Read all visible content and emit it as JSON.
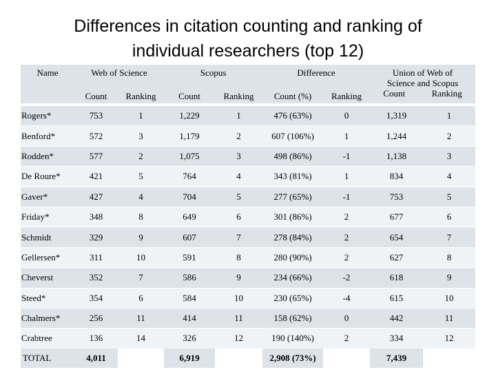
{
  "title": {
    "line1": "Differences in citation counting and ranking of",
    "line2": "individual researchers (top 12)"
  },
  "header": {
    "name": "Name",
    "wos": "Web of Science",
    "scopus": "Scopus",
    "difference": "Difference",
    "union_line1": "Union of Web of",
    "union_line2": "Science and Scopus",
    "count": "Count",
    "ranking": "Ranking",
    "count_pct": "Count (%)"
  },
  "rows": [
    {
      "name": "Rogers*",
      "wos_count": "753",
      "wos_rank": "1",
      "scopus_count": "1,229",
      "scopus_rank": "1",
      "diff_count": "476 (63%)",
      "diff_rank": "0",
      "union_count": "1,319",
      "union_rank": "1"
    },
    {
      "name": "Benford*",
      "wos_count": "572",
      "wos_rank": "3",
      "scopus_count": "1,179",
      "scopus_rank": "2",
      "diff_count": "607 (106%)",
      "diff_rank": "1",
      "union_count": "1,244",
      "union_rank": "2"
    },
    {
      "name": "Rodden*",
      "wos_count": "577",
      "wos_rank": "2",
      "scopus_count": "1,075",
      "scopus_rank": "3",
      "diff_count": "498 (86%)",
      "diff_rank": "-1",
      "union_count": "1,138",
      "union_rank": "3"
    },
    {
      "name": "De Roure*",
      "wos_count": "421",
      "wos_rank": "5",
      "scopus_count": "764",
      "scopus_rank": "4",
      "diff_count": "343 (81%)",
      "diff_rank": "1",
      "union_count": "834",
      "union_rank": "4"
    },
    {
      "name": "Gaver*",
      "wos_count": "427",
      "wos_rank": "4",
      "scopus_count": "704",
      "scopus_rank": "5",
      "diff_count": "277 (65%)",
      "diff_rank": "-1",
      "union_count": "753",
      "union_rank": "5"
    },
    {
      "name": "Friday*",
      "wos_count": "348",
      "wos_rank": "8",
      "scopus_count": "649",
      "scopus_rank": "6",
      "diff_count": "301 (86%)",
      "diff_rank": "2",
      "union_count": "677",
      "union_rank": "6"
    },
    {
      "name": "Schmidt",
      "wos_count": "329",
      "wos_rank": "9",
      "scopus_count": "607",
      "scopus_rank": "7",
      "diff_count": "278 (84%)",
      "diff_rank": "2",
      "union_count": "654",
      "union_rank": "7"
    },
    {
      "name": "Gellersen*",
      "wos_count": "311",
      "wos_rank": "10",
      "scopus_count": "591",
      "scopus_rank": "8",
      "diff_count": "280 (90%)",
      "diff_rank": "2",
      "union_count": "627",
      "union_rank": "8"
    },
    {
      "name": "Cheverst",
      "wos_count": "352",
      "wos_rank": "7",
      "scopus_count": "586",
      "scopus_rank": "9",
      "diff_count": "234 (66%)",
      "diff_rank": "-2",
      "union_count": "618",
      "union_rank": "9"
    },
    {
      "name": "Steed*",
      "wos_count": "354",
      "wos_rank": "6",
      "scopus_count": "584",
      "scopus_rank": "10",
      "diff_count": "230 (65%)",
      "diff_rank": "-4",
      "union_count": "615",
      "union_rank": "10"
    },
    {
      "name": "Chalmers*",
      "wos_count": "256",
      "wos_rank": "11",
      "scopus_count": "414",
      "scopus_rank": "11",
      "diff_count": "158 (62%)",
      "diff_rank": "0",
      "union_count": "442",
      "union_rank": "11"
    },
    {
      "name": "Crabtree",
      "wos_count": "136",
      "wos_rank": "14",
      "scopus_count": "326",
      "scopus_rank": "12",
      "diff_count": "190 (140%)",
      "diff_rank": "2",
      "union_count": "334",
      "union_rank": "12"
    }
  ],
  "total": {
    "name": "TOTAL",
    "wos_count": "4,011",
    "scopus_count": "6,919",
    "diff_count": "2,908 (73%)",
    "union_count": "7,439"
  }
}
